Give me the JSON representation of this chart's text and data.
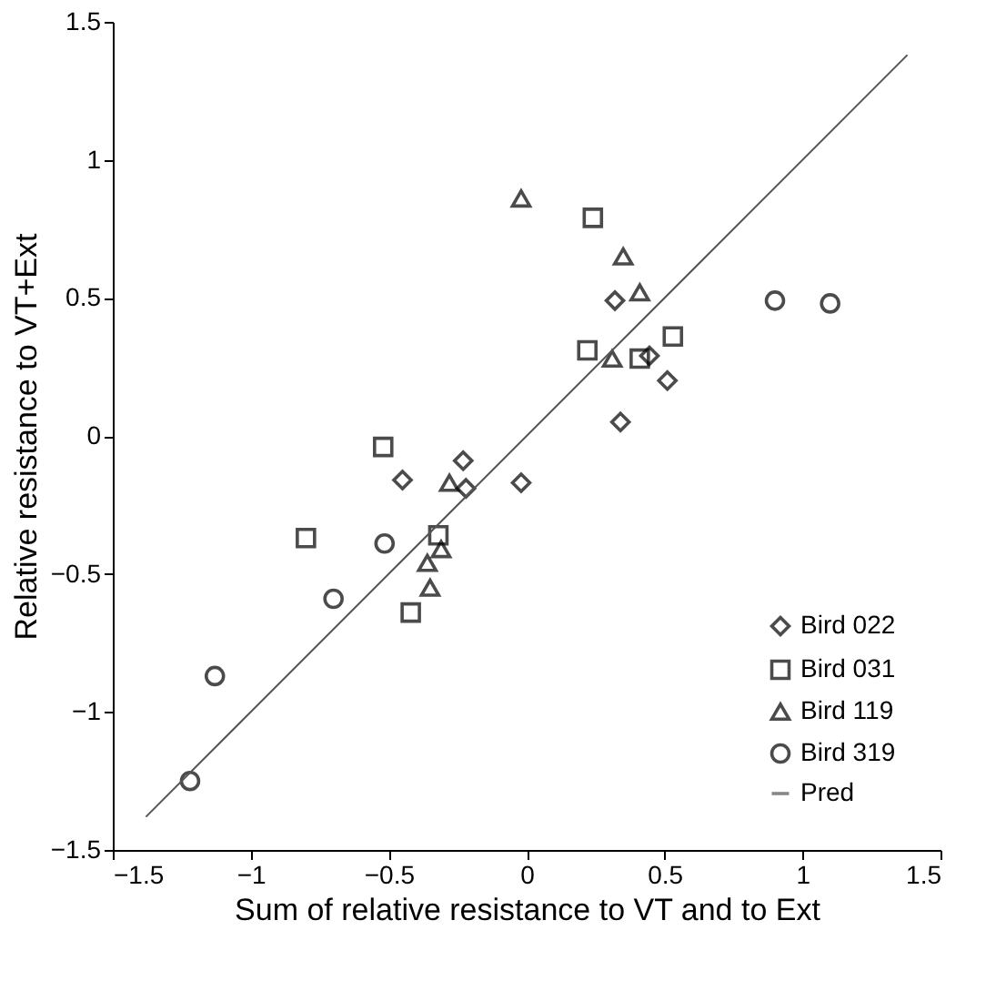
{
  "chart_data": {
    "type": "scatter",
    "xlabel": "Sum of relative resistance to VT and to Ext",
    "ylabel": "Relative resistance to VT+Ext",
    "xlim": [
      -1.5,
      1.5
    ],
    "ylim": [
      -1.5,
      1.5
    ],
    "xticks": [
      -1.5,
      -1,
      -0.5,
      0,
      0.5,
      1,
      1.5
    ],
    "yticks": [
      -1.5,
      -1,
      -0.5,
      0,
      0.5,
      1,
      1.5
    ],
    "grid": false,
    "legend": "bottom right",
    "series": [
      {
        "name": "Bird 022",
        "color": "#000000",
        "marker": "diamond",
        "x": [
          -0.45,
          -0.23,
          -0.22,
          -0.02,
          0.32,
          0.445,
          0.51,
          0.34
        ],
        "values": [
          -0.16,
          -0.09,
          -0.19,
          -0.17,
          0.49,
          0.29,
          0.2,
          0.05
        ]
      },
      {
        "name": "Bird 031",
        "color": "#000000",
        "marker": "square",
        "x": [
          -0.52,
          -0.8,
          -0.32,
          -0.42,
          0.24,
          0.22,
          0.41,
          0.53
        ],
        "values": [
          -0.04,
          -0.37,
          -0.36,
          -0.64,
          0.79,
          0.31,
          0.28,
          0.36
        ]
      },
      {
        "name": "Bird 119",
        "color": "#000000",
        "marker": "triangle",
        "x": [
          -0.28,
          -0.31,
          -0.36,
          -0.35,
          -0.02,
          0.35,
          0.41,
          0.31
        ],
        "values": [
          -0.17,
          -0.41,
          -0.46,
          -0.55,
          0.86,
          0.65,
          0.52,
          0.28
        ]
      },
      {
        "name": "Bird 319",
        "color": "#000000",
        "marker": "circle",
        "x": [
          -0.515,
          -0.7,
          -1.13,
          -1.22,
          0.9,
          1.1
        ],
        "values": [
          -0.39,
          -0.59,
          -0.87,
          -1.25,
          0.49,
          0.48
        ]
      },
      {
        "name": "Pred",
        "type": "line",
        "color": "#555555",
        "marker": "none",
        "line_style": "solid",
        "x": [
          -1.38,
          1.38
        ],
        "values": [
          -1.38,
          1.38
        ]
      }
    ]
  }
}
